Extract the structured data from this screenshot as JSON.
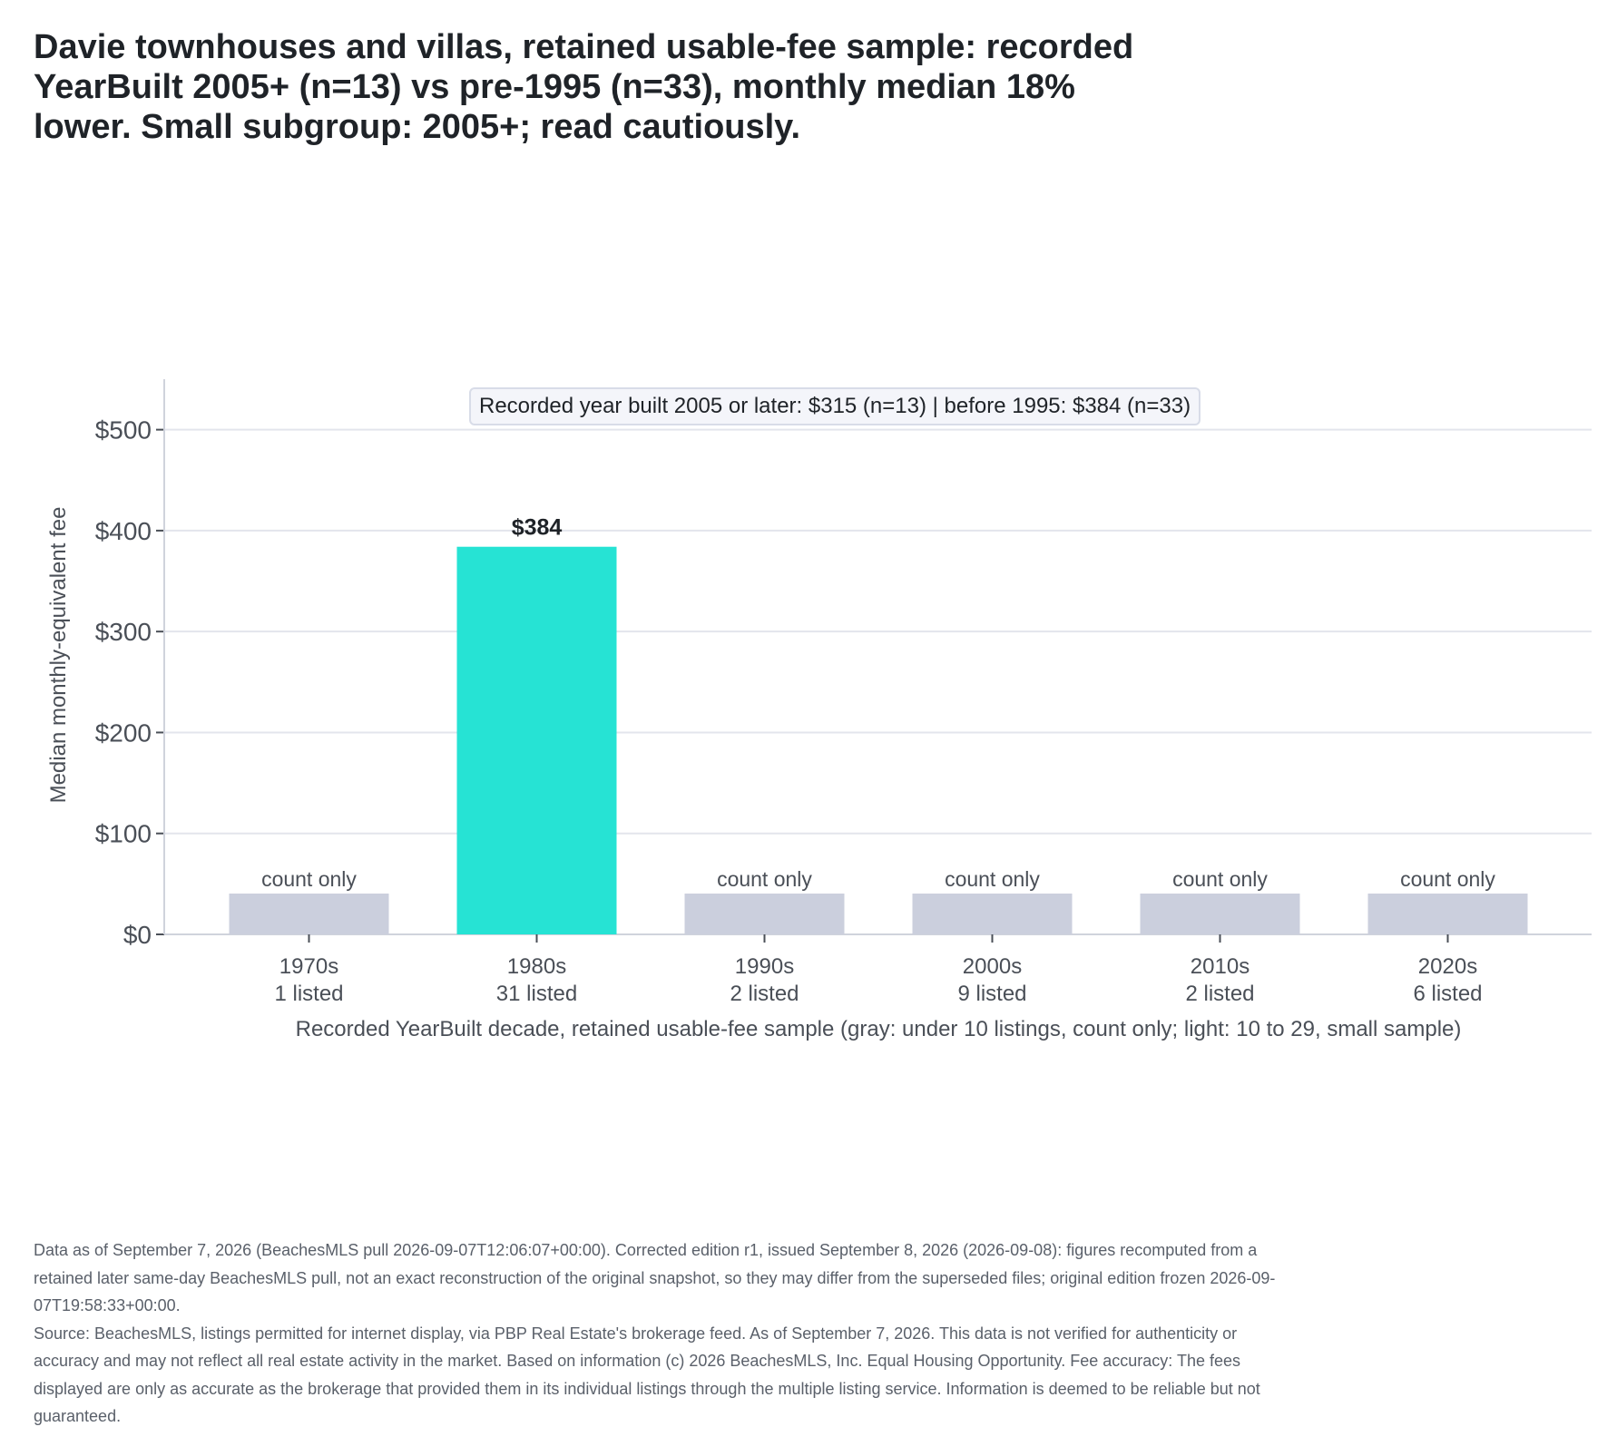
{
  "chart_data": {
    "type": "bar",
    "title": "Davie townhouses and villas, retained usable-fee sample: recorded YearBuilt 2005+ (n=13) vs pre-1995 (n=33), monthly median 18% lower. Small subgroup: 2005+; read cautiously.",
    "xlabel": "Recorded YearBuilt decade, retained usable-fee sample (gray: under 10 listings, count only; light: 10 to 29, small sample)",
    "ylabel": "Median monthly-equivalent fee",
    "ylim": [
      0,
      550
    ],
    "yticks": [
      0,
      100,
      200,
      300,
      400,
      500
    ],
    "ytick_labels": [
      "$0",
      "$100",
      "$200",
      "$300",
      "$400",
      "$500"
    ],
    "grid": true,
    "categories": [
      "1970s",
      "1980s",
      "1990s",
      "2000s",
      "2010s",
      "2020s"
    ],
    "counts": [
      "1 listed",
      "31 listed",
      "2 listed",
      "9 listed",
      "2 listed",
      "6 listed"
    ],
    "values": [
      null,
      384,
      null,
      null,
      null,
      null
    ],
    "count_only_label": "count only",
    "value_labels": [
      "",
      "$384",
      "",
      "",
      "",
      ""
    ],
    "annotation": "Recorded year built 2005 or later: $315 (n=13)   |   before 1995: $384 (n=33)",
    "colors": {
      "value_bar": "#26e3d4",
      "count_only_bar": "#cbcfdd",
      "grid": "#e3e5ec",
      "axis": "#d0d3dc"
    }
  },
  "footer": {
    "line1": "Data as of September 7, 2026 (BeachesMLS pull 2026-09-07T12:06:07+00:00). Corrected edition r1, issued September 8, 2026 (2026-09-08): figures recomputed from a retained later same-day BeachesMLS pull, not an exact reconstruction of the original snapshot, so they may differ from the superseded files; original edition frozen 2026-09-07T19:58:33+00:00.",
    "line2": "Source: BeachesMLS, listings permitted for internet display, via PBP Real Estate's brokerage feed. As of September 7, 2026. This data is not verified for authenticity or accuracy and may not reflect all real estate activity in the market. Based on information (c) 2026 BeachesMLS, Inc. Equal Housing Opportunity. Fee accuracy: The fees displayed are only as accurate as the brokerage that provided them in its individual listings through the multiple listing service. Information is deemed to be reliable but not guaranteed."
  }
}
